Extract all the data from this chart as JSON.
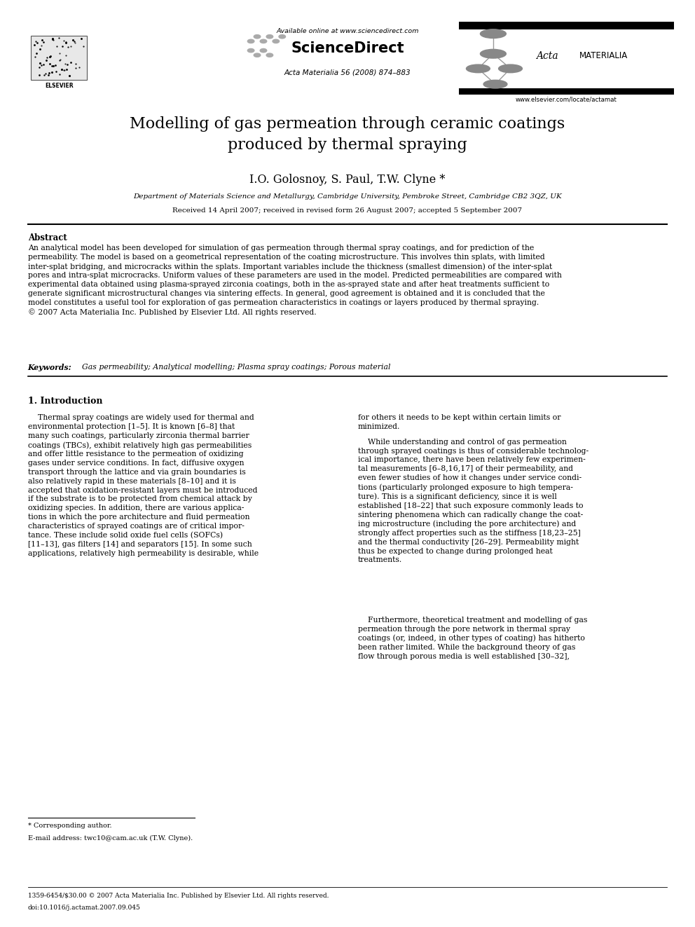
{
  "page_width": 9.92,
  "page_height": 13.23,
  "bg_color": "#ffffff",
  "header": {
    "elsevier_text": "ELSEVIER",
    "available_online": "Available online at www.sciencedirect.com",
    "sciencedirect": "ScienceDirect",
    "journal_info": "Acta Materialia 56 (2008) 874–883",
    "acta_text1": "Acta",
    "acta_text2": "MATERIALIA",
    "website": "www.elsevier.com/locate/actamat"
  },
  "title": "Modelling of gas permeation through ceramic coatings\nproduced by thermal spraying",
  "authors": "I.O. Golosnoy, S. Paul, T.W. Clyne *",
  "affiliation": "Department of Materials Science and Metallurgy, Cambridge University, Pembroke Street, Cambridge CB2 3QZ, UK",
  "received": "Received 14 April 2007; received in revised form 26 August 2007; accepted 5 September 2007",
  "abstract_title": "Abstract",
  "abstract_text": "An analytical model has been developed for simulation of gas permeation through thermal spray coatings, and for prediction of the\npermeability. The model is based on a geometrical representation of the coating microstructure. This involves thin splats, with limited\ninter-splat bridging, and microcracks within the splats. Important variables include the thickness (smallest dimension) of the inter-splat\npores and intra-splat microcracks. Uniform values of these parameters are used in the model. Predicted permeabilities are compared with\nexperimental data obtained using plasma-sprayed zirconia coatings, both in the as-sprayed state and after heat treatments sufficient to\ngenerate significant microstructural changes via sintering effects. In general, good agreement is obtained and it is concluded that the\nmodel constitutes a useful tool for exploration of gas permeation characteristics in coatings or layers produced by thermal spraying.\n© 2007 Acta Materialia Inc. Published by Elsevier Ltd. All rights reserved.",
  "keywords_label": "Keywords:",
  "keywords_text": "Gas permeability; Analytical modelling; Plasma spray coatings; Porous material",
  "section1_title": "1. Introduction",
  "col1_para1": "    Thermal spray coatings are widely used for thermal and\nenvironmental protection [1–5]. It is known [6–8] that\nmany such coatings, particularly zirconia thermal barrier\ncoatings (TBCs), exhibit relatively high gas permeabilities\nand offer little resistance to the permeation of oxidizing\ngases under service conditions. In fact, diffusive oxygen\ntransport through the lattice and via grain boundaries is\nalso relatively rapid in these materials [8–10] and it is\naccepted that oxidation-resistant layers must be introduced\nif the substrate is to be protected from chemical attack by\noxidizing species. In addition, there are various applica-\ntions in which the pore architecture and fluid permeation\ncharacteristics of sprayed coatings are of critical impor-\ntance. These include solid oxide fuel cells (SOFCs)\n[11–13], gas filters [14] and separators [15]. In some such\napplications, relatively high permeability is desirable, while",
  "col2_para1": "for others it needs to be kept within certain limits or\nminimized.",
  "col2_para2": "    While understanding and control of gas permeation\nthrough sprayed coatings is thus of considerable technolog-\nical importance, there have been relatively few experimen-\ntal measurements [6–8,16,17] of their permeability, and\neven fewer studies of how it changes under service condi-\ntions (particularly prolonged exposure to high tempera-\nture). This is a significant deficiency, since it is well\nestablished [18–22] that such exposure commonly leads to\nsintering phenomena which can radically change the coat-\ning microstructure (including the pore architecture) and\nstrongly affect properties such as the stiffness [18,23–25]\nand the thermal conductivity [26–29]. Permeability might\nthus be expected to change during prolonged heat\ntreatments.",
  "col2_para3": "    Furthermore, theoretical treatment and modelling of gas\npermeation through the pore network in thermal spray\ncoatings (or, indeed, in other types of coating) has hitherto\nbeen rather limited. While the background theory of gas\nflow through porous media is well established [30–32],",
  "footnote_star": "* Corresponding author.",
  "footnote_email": "E-mail address: twc10@cam.ac.uk (T.W. Clyne).",
  "footer_left": "1359-6454/$30.00 © 2007 Acta Materialia Inc. Published by Elsevier Ltd. All rights reserved.",
  "footer_doi": "doi:10.1016/j.actamat.2007.09.045"
}
